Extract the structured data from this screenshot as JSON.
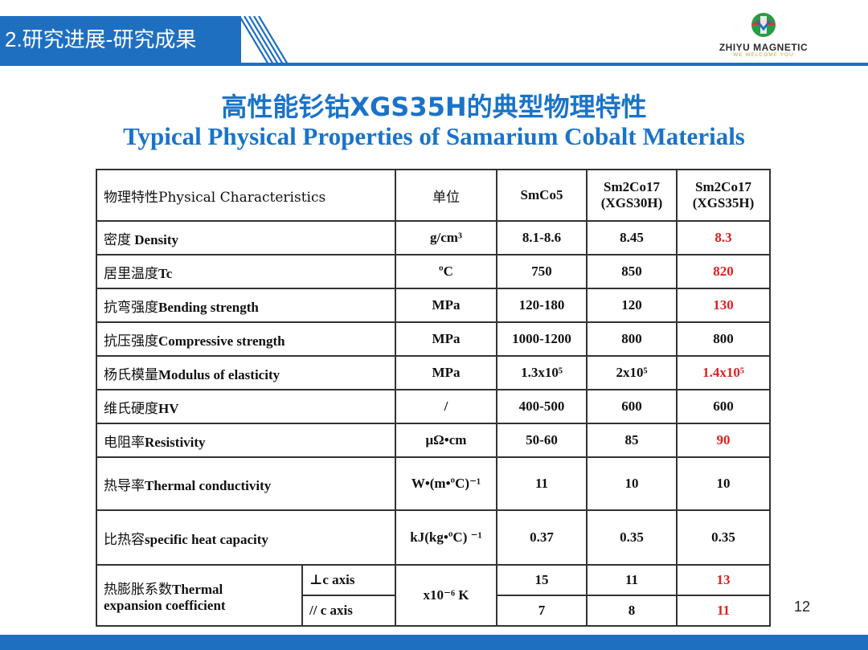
{
  "header": {
    "section_title": "2.研究进展-研究成果",
    "logo_name": "ZHIYU MAGNETIC",
    "logo_slogan": "WE WELCOME YOU",
    "accent_color": "#1f6fc1"
  },
  "title": {
    "cn": "高性能钐钴XGS35H的典型物理特性",
    "en": "Typical Physical Properties of Samarium Cobalt Materials"
  },
  "table": {
    "headers": {
      "property": "物理特性Physical Characteristics",
      "unit": "单位",
      "smco5": "SmCo5",
      "xgs30h_line1": "Sm2Co17",
      "xgs30h_line2": "(XGS30H)",
      "xgs35h_line1": "Sm2Co17",
      "xgs35h_line2": "(XGS35H)"
    },
    "rows": [
      {
        "cn": "密度",
        "en": " Density",
        "unit": "g/cm³",
        "smco5": "8.1-8.6",
        "xgs30h": "8.45",
        "xgs35h": "8.3"
      },
      {
        "cn": "居里温度",
        "en": "Tc",
        "unit": "ºC",
        "smco5": "750",
        "xgs30h": "850",
        "xgs35h": "820"
      },
      {
        "cn": "抗弯强度",
        "en": "Bending strength",
        "unit": "MPa",
        "smco5": "120-180",
        "xgs30h": "120",
        "xgs35h": "130"
      },
      {
        "cn": "抗压强度",
        "en": "Compressive strength",
        "unit": "MPa",
        "smco5": "1000-1200",
        "xgs30h": "800",
        "xgs35h": "800"
      },
      {
        "cn": "杨氏模量",
        "en": "Modulus of elasticity",
        "unit": "MPa",
        "smco5": "1.3x10⁵",
        "xgs30h": "2x10⁵",
        "xgs35h": "1.4x10⁵"
      },
      {
        "cn": "维氏硬度",
        "en": "HV",
        "unit": "/",
        "smco5": "400-500",
        "xgs30h": "600",
        "xgs35h": "600"
      },
      {
        "cn": "电阻率",
        "en": "Resistivity",
        "unit": "μΩ•cm",
        "smco5": "50-60",
        "xgs30h": "85",
        "xgs35h": "90"
      },
      {
        "cn": "热导率",
        "en": "Thermal conductivity",
        "unit": "W•(m•ºC)⁻¹",
        "smco5": "11",
        "xgs30h": "10",
        "xgs35h": "10"
      },
      {
        "cn": "比热容",
        "en": "specific heat capacity",
        "unit": "kJ(kg•ºC) ⁻¹",
        "smco5": "0.37",
        "xgs30h": "0.35",
        "xgs35h": "0.35"
      }
    ],
    "expansion": {
      "cn": "热膨胀系数",
      "en1": "Thermal",
      "en2": "expansion coefficient",
      "unit": "x10⁻⁶ K",
      "perp_label": "⊥c axis",
      "para_label": "// c axis",
      "perp": {
        "smco5": "15",
        "xgs30h": "11",
        "xgs35h": "13"
      },
      "para": {
        "smco5": "7",
        "xgs30h": "8",
        "xgs35h": "11"
      }
    },
    "highlight_color": "#e02020"
  },
  "page_number": "12"
}
